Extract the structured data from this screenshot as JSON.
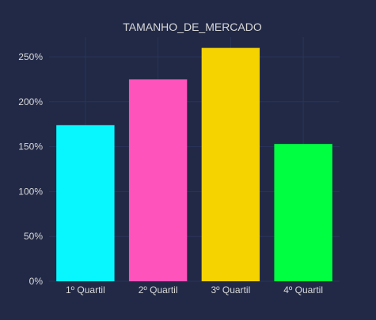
{
  "chart_data": {
    "type": "bar",
    "title": "TAMANHO_DE_MERCADO",
    "xlabel": "",
    "ylabel": "",
    "categories": [
      "1º Quartil",
      "2º Quartil",
      "3º Quartil",
      "4º Quartil"
    ],
    "values": [
      174,
      225,
      260,
      153
    ],
    "value_unit": "%",
    "ylim": [
      0,
      272
    ],
    "yticks": [
      0,
      50,
      100,
      150,
      200,
      250
    ],
    "ytick_labels": [
      "0%",
      "50%",
      "100%",
      "150%",
      "200%",
      "250%"
    ],
    "grid": true,
    "legend": "none",
    "colors": {
      "background": "#212946",
      "grid": "#2A3459",
      "text": "#D9D9D9",
      "bars": [
        "#08F7FE",
        "#FE53BB",
        "#F5D300",
        "#00FF41"
      ]
    }
  }
}
